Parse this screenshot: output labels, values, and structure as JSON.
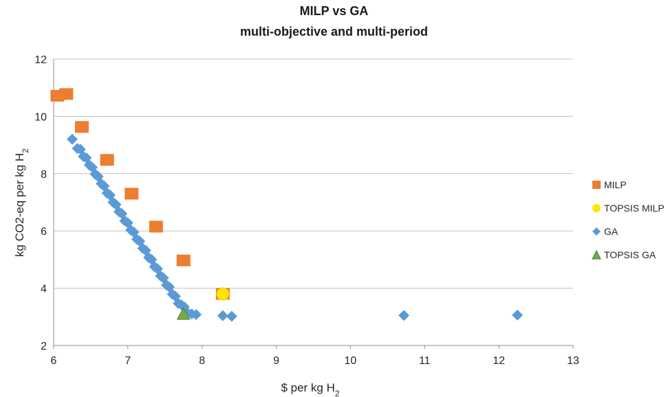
{
  "chart_data": {
    "type": "scatter",
    "title": "MILP vs GA",
    "subtitle": "multi-objective and multi-period",
    "xlabel": "$ per kg H",
    "xlabel_sub": "2",
    "ylabel": "kg CO2-eq per kg H",
    "ylabel_sub": "2",
    "xlim": [
      6,
      13
    ],
    "ylim": [
      2,
      12
    ],
    "xticks": [
      6,
      7,
      8,
      9,
      10,
      11,
      12,
      13
    ],
    "yticks": [
      2,
      4,
      6,
      8,
      10,
      12
    ],
    "grid": "horizontal",
    "legend_position": "right",
    "series": [
      {
        "name": "MILP",
        "marker": "square",
        "color": "#ED7D31",
        "points": [
          [
            6.05,
            10.72
          ],
          [
            6.17,
            10.78
          ],
          [
            6.38,
            9.63
          ],
          [
            6.72,
            8.48
          ],
          [
            7.05,
            7.3
          ],
          [
            7.38,
            6.15
          ],
          [
            7.75,
            4.97
          ],
          [
            8.28,
            3.8
          ]
        ]
      },
      {
        "name": "TOPSIS MILP",
        "marker": "circle",
        "color": "#FFE600",
        "points": [
          [
            8.28,
            3.8
          ]
        ]
      },
      {
        "name": "GA",
        "marker": "diamond",
        "color": "#5B9BD5",
        "points": [
          [
            6.25,
            9.2
          ],
          [
            6.32,
            8.88
          ],
          [
            6.36,
            8.85
          ],
          [
            6.4,
            8.6
          ],
          [
            6.44,
            8.55
          ],
          [
            6.48,
            8.3
          ],
          [
            6.52,
            8.22
          ],
          [
            6.56,
            7.98
          ],
          [
            6.6,
            7.9
          ],
          [
            6.64,
            7.65
          ],
          [
            6.68,
            7.57
          ],
          [
            6.72,
            7.32
          ],
          [
            6.76,
            7.25
          ],
          [
            6.8,
            7.0
          ],
          [
            6.84,
            6.92
          ],
          [
            6.88,
            6.67
          ],
          [
            6.92,
            6.6
          ],
          [
            6.96,
            6.35
          ],
          [
            7.0,
            6.28
          ],
          [
            7.04,
            6.03
          ],
          [
            7.08,
            5.96
          ],
          [
            7.12,
            5.71
          ],
          [
            7.16,
            5.64
          ],
          [
            7.2,
            5.39
          ],
          [
            7.24,
            5.32
          ],
          [
            7.28,
            5.07
          ],
          [
            7.32,
            5.0
          ],
          [
            7.36,
            4.75
          ],
          [
            7.4,
            4.68
          ],
          [
            7.44,
            4.43
          ],
          [
            7.48,
            4.36
          ],
          [
            7.52,
            4.11
          ],
          [
            7.56,
            4.04
          ],
          [
            7.6,
            3.79
          ],
          [
            7.64,
            3.72
          ],
          [
            7.68,
            3.47
          ],
          [
            7.72,
            3.42
          ],
          [
            7.76,
            3.35
          ],
          [
            7.8,
            3.15
          ],
          [
            7.86,
            3.1
          ],
          [
            7.92,
            3.08
          ],
          [
            8.28,
            3.04
          ],
          [
            8.4,
            3.02
          ],
          [
            10.72,
            3.05
          ],
          [
            12.25,
            3.06
          ]
        ]
      },
      {
        "name": "TOPSIS GA",
        "marker": "triangle",
        "color": "#70AD47",
        "points": [
          [
            7.75,
            3.08
          ]
        ]
      }
    ]
  }
}
